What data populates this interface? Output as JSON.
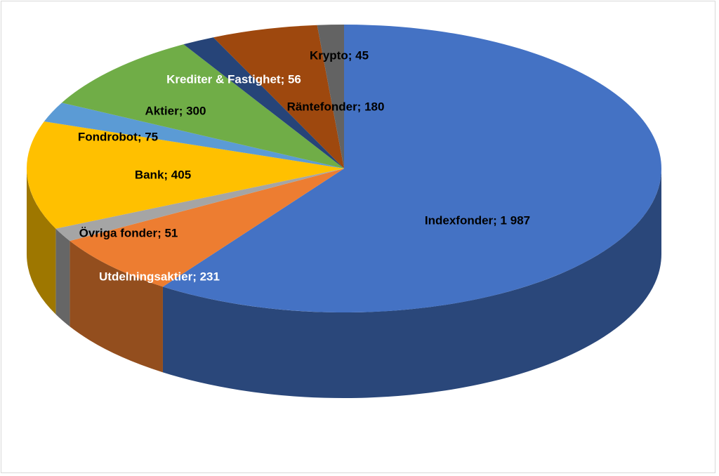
{
  "chart_data": {
    "type": "pie3d",
    "values": [
      1987,
      231,
      51,
      405,
      75,
      300,
      56,
      180,
      45
    ],
    "value_labels": [
      "Indexfonder; 1 987",
      "Utdelningsaktier; 231",
      "Övriga fonder; 51",
      "Bank; 405",
      "Fondrobot; 75",
      "Aktier; 300",
      "Krediter & Fastighet; 56",
      "Räntefonder; 180",
      "Krypto; 45"
    ],
    "colors": [
      "#4472c4",
      "#ed7d31",
      "#a5a5a5",
      "#ffc000",
      "#5b9bd5",
      "#70ad47",
      "#264478",
      "#9e480e",
      "#636363"
    ]
  }
}
